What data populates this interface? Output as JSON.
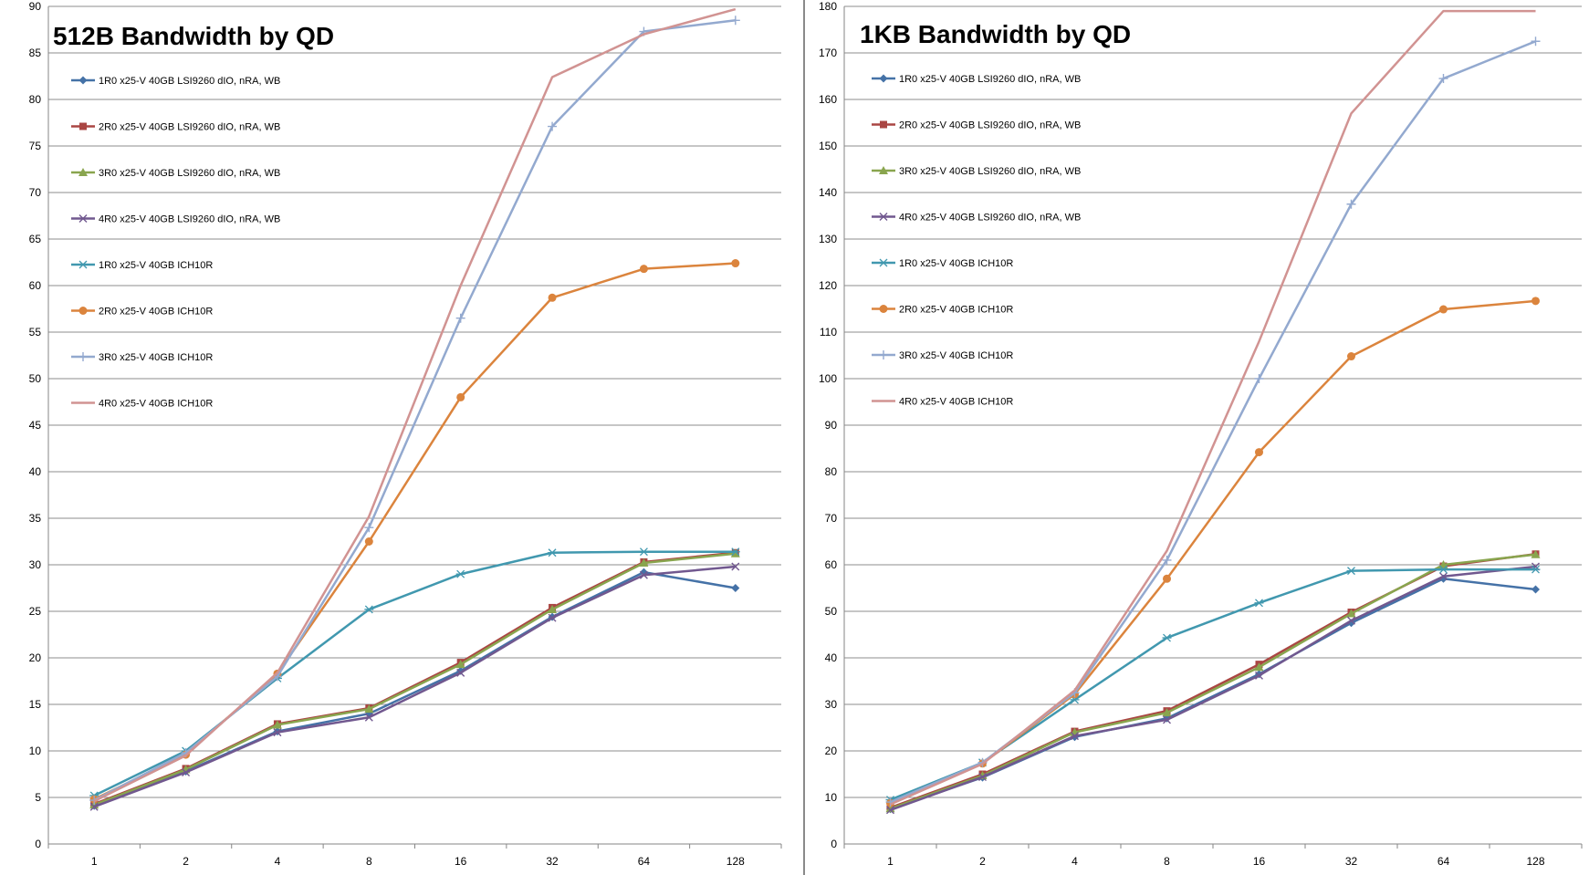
{
  "chart_data": [
    {
      "type": "line",
      "title": "512B Bandwidth by QD",
      "xlabel": "",
      "ylabel": "",
      "categories": [
        "1",
        "2",
        "4",
        "8",
        "16",
        "32",
        "64",
        "128"
      ],
      "ylim": [
        0,
        90
      ],
      "ytick_step": 5,
      "grid": true,
      "legend": "top-left",
      "series": [
        {
          "name": "1R0 x25-V 40GB LSI9260 dIO, nRA, WB",
          "color": "#4572A7",
          "marker": "diamond",
          "values": [
            4.1,
            7.8,
            12.1,
            14.0,
            18.6,
            24.4,
            29.2,
            27.5
          ]
        },
        {
          "name": "2R0 x25-V 40GB LSI9260 dIO, nRA, WB",
          "color": "#AA4643",
          "marker": "square",
          "values": [
            4.3,
            8.1,
            12.9,
            14.6,
            19.5,
            25.4,
            30.3,
            31.3
          ]
        },
        {
          "name": "3R0 x25-V 40GB LSI9260 dIO, nRA, WB",
          "color": "#89A54E",
          "marker": "triangle",
          "values": [
            4.2,
            8.0,
            12.8,
            14.5,
            19.3,
            25.2,
            30.2,
            31.2
          ]
        },
        {
          "name": "4R0 x25-V 40GB LSI9260 dIO, nRA, WB",
          "color": "#71588F",
          "marker": "x",
          "values": [
            4.0,
            7.7,
            12.0,
            13.6,
            18.4,
            24.3,
            28.9,
            29.8
          ]
        },
        {
          "name": "1R0 x25-V 40GB ICH10R",
          "color": "#4198AF",
          "marker": "star",
          "values": [
            5.2,
            10.0,
            17.8,
            25.2,
            29.0,
            31.3,
            31.4,
            31.4
          ]
        },
        {
          "name": "2R0 x25-V 40GB ICH10R",
          "color": "#DB843D",
          "marker": "circle",
          "values": [
            4.8,
            9.6,
            18.3,
            32.5,
            48.0,
            58.7,
            61.8,
            62.4
          ]
        },
        {
          "name": "3R0 x25-V 40GB ICH10R",
          "color": "#93A9CF",
          "marker": "plus",
          "values": [
            4.7,
            9.8,
            18.0,
            34.0,
            56.5,
            77.1,
            87.3,
            88.5
          ]
        },
        {
          "name": "4R0 x25-V 40GB ICH10R",
          "color": "#D19392",
          "marker": "none",
          "values": [
            4.6,
            9.5,
            18.4,
            35.2,
            60.0,
            82.4,
            87.0,
            89.7
          ]
        }
      ]
    },
    {
      "type": "line",
      "title": "1KB Bandwidth by QD",
      "xlabel": "",
      "ylabel": "",
      "categories": [
        "1",
        "2",
        "4",
        "8",
        "16",
        "32",
        "64",
        "128"
      ],
      "ylim": [
        0,
        180
      ],
      "ytick_step": 10,
      "grid": true,
      "legend": "top-left",
      "series": [
        {
          "name": "1R0 x25-V 40GB LSI9260 dIO, nRA, WB",
          "color": "#4572A7",
          "marker": "diamond",
          "values": [
            7.5,
            14.3,
            23.0,
            27.0,
            36.5,
            47.5,
            57.0,
            54.7
          ]
        },
        {
          "name": "2R0 x25-V 40GB LSI9260 dIO, nRA, WB",
          "color": "#AA4643",
          "marker": "square",
          "values": [
            7.8,
            15.0,
            24.2,
            28.6,
            38.6,
            49.8,
            59.7,
            62.3
          ]
        },
        {
          "name": "3R0 x25-V 40GB LSI9260 dIO, nRA, WB",
          "color": "#89A54E",
          "marker": "triangle",
          "values": [
            7.6,
            14.7,
            24.0,
            28.2,
            38.0,
            49.5,
            60.0,
            62.2
          ]
        },
        {
          "name": "4R0 x25-V 40GB LSI9260 dIO, nRA, WB",
          "color": "#71588F",
          "marker": "x",
          "values": [
            7.3,
            14.4,
            23.2,
            26.7,
            36.2,
            48.0,
            57.5,
            59.6
          ]
        },
        {
          "name": "1R0 x25-V 40GB ICH10R",
          "color": "#4198AF",
          "marker": "star",
          "values": [
            9.5,
            17.5,
            31.0,
            44.3,
            51.8,
            58.7,
            59.0,
            59.0
          ]
        },
        {
          "name": "2R0 x25-V 40GB ICH10R",
          "color": "#DB843D",
          "marker": "circle",
          "values": [
            8.8,
            17.3,
            32.2,
            57.0,
            84.2,
            104.8,
            114.9,
            116.7
          ]
        },
        {
          "name": "3R0 x25-V 40GB ICH10R",
          "color": "#93A9CF",
          "marker": "plus",
          "values": [
            9.0,
            17.5,
            32.5,
            61.0,
            100.0,
            137.5,
            164.5,
            172.5
          ]
        },
        {
          "name": "4R0 x25-V 40GB ICH10R",
          "color": "#D19392",
          "marker": "none",
          "values": [
            8.5,
            17.2,
            33.0,
            63.0,
            108.0,
            157.0,
            179.0,
            179.0
          ]
        }
      ]
    }
  ]
}
